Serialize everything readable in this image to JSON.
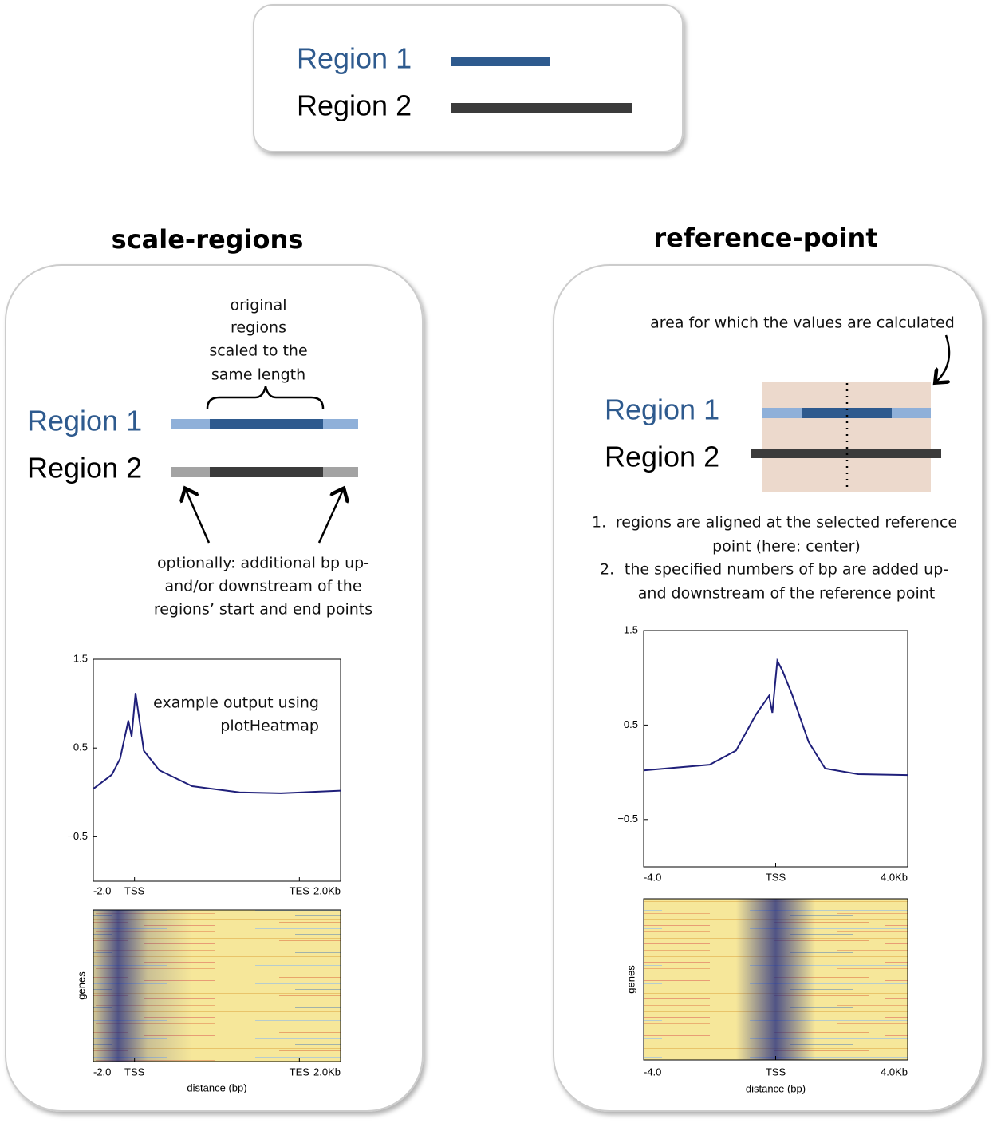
{
  "legend": {
    "items": [
      {
        "label": "Region 1",
        "color": "#2e5a8e"
      },
      {
        "label": "Region 2",
        "color": "#3b3b3b"
      }
    ]
  },
  "scale_regions": {
    "title": "scale-regions",
    "note": [
      "original",
      "regions",
      "scaled to the",
      "same length"
    ],
    "regions": [
      "Region 1",
      "Region 2"
    ],
    "optional_note": [
      "optionally: additional bp up-",
      "and/or downstream of the",
      "regions’ start and end points"
    ],
    "example_note": [
      "example output using",
      "plotHeatmap"
    ]
  },
  "reference_point": {
    "title": "reference-point",
    "area_note": "area for which the values are calculated",
    "regions": [
      "Region 1",
      "Region 2"
    ],
    "steps": [
      {
        "number": "1.",
        "lines": [
          "regions are aligned at the selected reference",
          "point (here: center)"
        ]
      },
      {
        "number": "2.",
        "lines": [
          "the specified numbers of bp are added up-",
          "and downstream of the reference point"
        ]
      }
    ]
  },
  "chart_data": [
    {
      "type": "line",
      "color": "#1f1f7a",
      "x": [
        -2,
        -1.1,
        -0.7,
        -0.3,
        -0.14,
        0.05,
        0.45,
        1.2,
        2.8,
        5.1,
        7.1,
        10
      ],
      "values": [
        0.04,
        0.2,
        0.38,
        0.81,
        0.63,
        1.12,
        0.47,
        0.25,
        0.07,
        0.0,
        -0.01,
        0.02
      ],
      "xlim": [
        -2,
        10
      ],
      "ylim": [
        -1,
        1.5
      ],
      "xticks": [
        {
          "value": -2,
          "label": "-2.0"
        },
        {
          "value": 0,
          "label": "TSS"
        },
        {
          "value": 8,
          "label": "TES"
        },
        {
          "value": 10,
          "label": "2.0Kb"
        }
      ],
      "yticks": [
        {
          "value": -0.5,
          "label": "−0.5"
        },
        0.5,
        1.5
      ],
      "heatmap": {
        "xlabel": "distance (bp)",
        "ylabel": "genes"
      }
    },
    {
      "type": "line",
      "color": "#1f1f7a",
      "x": [
        -4,
        -2,
        -1.2,
        -0.6,
        -0.2,
        -0.1,
        0.05,
        0.2,
        0.5,
        1.0,
        1.5,
        2.5,
        4
      ],
      "values": [
        0.02,
        0.08,
        0.23,
        0.61,
        0.81,
        0.63,
        1.18,
        1.08,
        0.82,
        0.32,
        0.04,
        -0.02,
        -0.03
      ],
      "xlim": [
        -4,
        4
      ],
      "ylim": [
        -1,
        1.5
      ],
      "xticks": [
        {
          "value": -4,
          "label": "-4.0"
        },
        {
          "value": 0,
          "label": "TSS"
        },
        {
          "value": 4,
          "label": "4.0Kb"
        }
      ],
      "yticks": [
        {
          "value": -0.5,
          "label": "−0.5"
        },
        0.5,
        1.5
      ],
      "heatmap": {
        "xlabel": "distance (bp)",
        "ylabel": "genes"
      }
    }
  ]
}
